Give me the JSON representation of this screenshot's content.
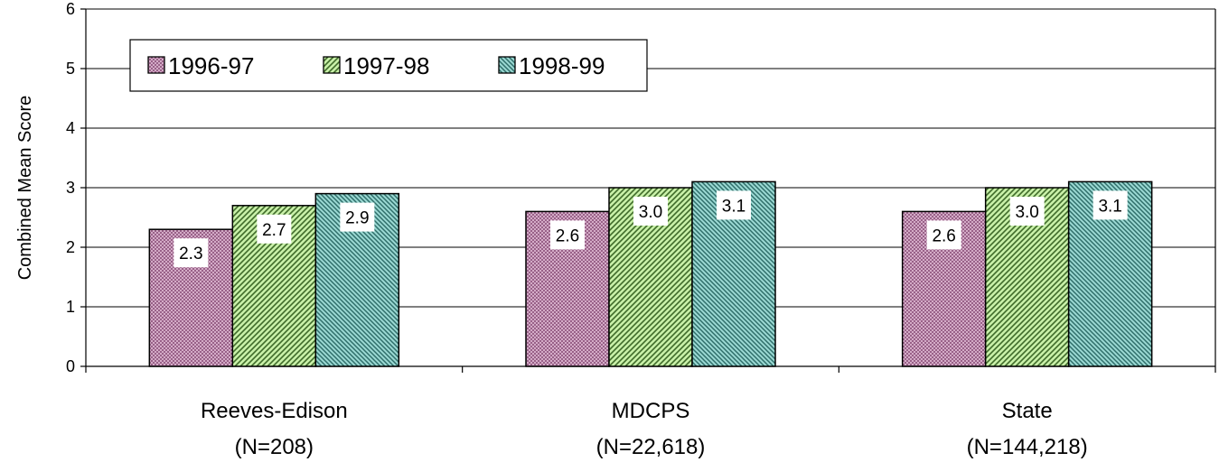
{
  "chart_data": {
    "type": "bar",
    "title": "",
    "xlabel": "",
    "ylabel": "Combined Mean Score",
    "ylim": [
      0,
      6
    ],
    "yticks": [
      0,
      1,
      2,
      3,
      4,
      5,
      6
    ],
    "grid": true,
    "legend_position": "top-left",
    "categories": [
      {
        "name": "Reeves-Edison",
        "n": "(N=208)"
      },
      {
        "name": "MDCPS",
        "n": "(N=22,618)"
      },
      {
        "name": "State",
        "n": "(N=144,218)"
      }
    ],
    "series": [
      {
        "name": "1996-97",
        "values": [
          2.3,
          2.6,
          2.6
        ],
        "labels": [
          "2.3",
          "2.6",
          "2.6"
        ],
        "color": "#d8a8c8",
        "pattern": "crosshatch"
      },
      {
        "name": "1997-98",
        "values": [
          2.7,
          3.0,
          3.0
        ],
        "labels": [
          "2.7",
          "3.0",
          "3.0"
        ],
        "color": "#c0ec9c",
        "pattern": "diagonal"
      },
      {
        "name": "1998-99",
        "values": [
          2.9,
          3.1,
          3.1
        ],
        "labels": [
          "2.9",
          "3.1",
          "3.1"
        ],
        "color": "#8ccfc9",
        "pattern": "diagonal"
      }
    ]
  }
}
